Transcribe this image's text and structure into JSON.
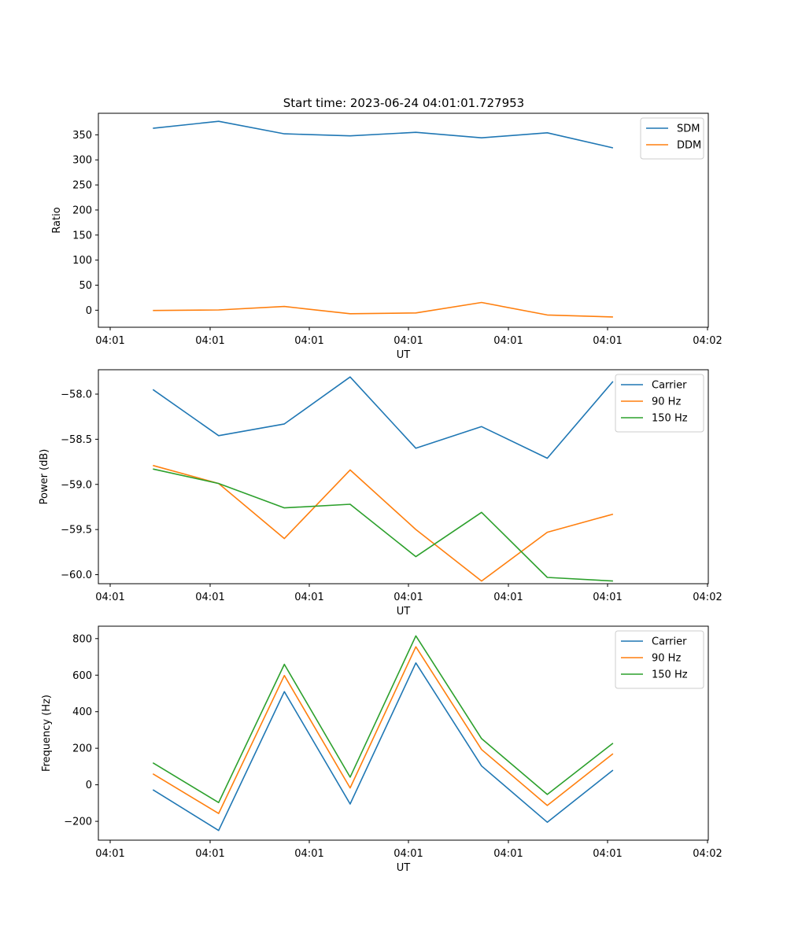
{
  "figure": {
    "title": "Start time: 2023-06-24 04:01:01.727953"
  },
  "chart_data": [
    {
      "type": "line",
      "title": "Start time: 2023-06-24 04:01:01.727953",
      "xlabel": "UT",
      "ylabel": "Ratio",
      "x_tick_labels": [
        "04:01",
        "04:01",
        "04:01",
        "04:01",
        "04:01",
        "04:01",
        "04:02"
      ],
      "y_ticks": [
        0,
        50,
        100,
        150,
        200,
        250,
        300,
        350
      ],
      "ylim": [
        -34,
        393
      ],
      "x": [
        1,
        2,
        3,
        4,
        5,
        6,
        7,
        8
      ],
      "xlim": [
        0.17,
        9.45
      ],
      "grid": false,
      "legend_position": "top-right",
      "series": [
        {
          "name": "SDM",
          "color": "#1f77b4",
          "values": [
            363,
            377,
            352,
            348,
            355,
            344,
            354,
            324
          ]
        },
        {
          "name": "DDM",
          "color": "#ff7f0e",
          "values": [
            -0.5,
            0.5,
            7.5,
            -7,
            -5.5,
            15.5,
            -9.5,
            -13.5
          ]
        }
      ]
    },
    {
      "type": "line",
      "xlabel": "UT",
      "ylabel": "Power (dB)",
      "x_tick_labels": [
        "04:01",
        "04:01",
        "04:01",
        "04:01",
        "04:01",
        "04:01",
        "04:02"
      ],
      "y_ticks": [
        -58.0,
        -58.5,
        -59.0,
        -59.5,
        -60.0
      ],
      "y_tick_labels": [
        "−58.0",
        "−58.5",
        "−59.0",
        "−59.5",
        "−60.0"
      ],
      "ylim": [
        -60.1,
        -57.73
      ],
      "x": [
        1,
        2,
        3,
        4,
        5,
        6,
        7,
        8
      ],
      "xlim": [
        0.17,
        9.45
      ],
      "grid": false,
      "legend_position": "top-right",
      "series": [
        {
          "name": "Carrier",
          "color": "#1f77b4",
          "values": [
            -57.95,
            -58.46,
            -58.33,
            -57.81,
            -58.6,
            -58.36,
            -58.71,
            -57.86
          ]
        },
        {
          "name": "90 Hz",
          "color": "#ff7f0e",
          "values": [
            -58.79,
            -58.99,
            -59.6,
            -58.84,
            -59.5,
            -60.07,
            -59.53,
            -59.33
          ]
        },
        {
          "name": "150 Hz",
          "color": "#2ca02c",
          "values": [
            -58.83,
            -58.99,
            -59.26,
            -59.22,
            -59.8,
            -59.31,
            -60.03,
            -60.07
          ]
        }
      ]
    },
    {
      "type": "line",
      "xlabel": "UT",
      "ylabel": "Frequency (Hz)",
      "x_tick_labels": [
        "04:01",
        "04:01",
        "04:01",
        "04:01",
        "04:01",
        "04:01",
        "04:02"
      ],
      "y_ticks": [
        -200,
        0,
        200,
        400,
        600,
        800
      ],
      "y_tick_labels": [
        "−200",
        "0",
        "200",
        "400",
        "600",
        "800"
      ],
      "ylim": [
        -303,
        868
      ],
      "x": [
        1,
        2,
        3,
        4,
        5,
        6,
        7,
        8
      ],
      "xlim": [
        0.17,
        9.45
      ],
      "grid": false,
      "legend_position": "top-right",
      "series": [
        {
          "name": "Carrier",
          "color": "#1f77b4",
          "values": [
            -27,
            -250,
            510,
            -105,
            667,
            103,
            -205,
            80
          ]
        },
        {
          "name": "90 Hz",
          "color": "#ff7f0e",
          "values": [
            60,
            -157,
            598,
            -17,
            755,
            193,
            -113,
            170
          ]
        },
        {
          "name": "150 Hz",
          "color": "#2ca02c",
          "values": [
            120,
            -97,
            659,
            42,
            815,
            253,
            -53,
            228
          ]
        }
      ]
    }
  ]
}
